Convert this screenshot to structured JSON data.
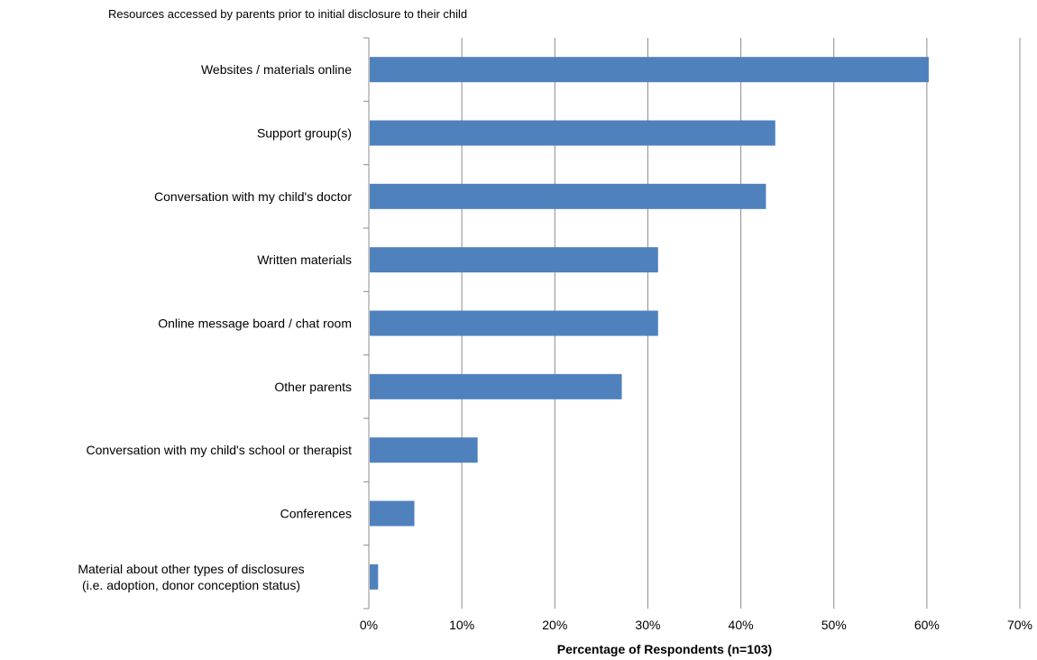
{
  "chart_data": {
    "type": "bar",
    "orientation": "horizontal",
    "title": "Resources accessed by parents prior to initial disclosure to their child",
    "xlabel": "Percentage of Respondents (n=103)",
    "ylabel": "",
    "xlim": [
      0,
      70
    ],
    "x_ticks": [
      "0%",
      "10%",
      "20%",
      "30%",
      "40%",
      "50%",
      "60%",
      "70%"
    ],
    "grid": "vertical",
    "legend": "none",
    "bar_color": "#4f81bd",
    "categories": [
      [
        "Websites / materials online"
      ],
      [
        "Support group(s)"
      ],
      [
        "Conversation with my child's doctor"
      ],
      [
        "Written materials"
      ],
      [
        "Online message board / chat room"
      ],
      [
        "Other parents"
      ],
      [
        "Conversation with my child's school or therapist"
      ],
      [
        "Conferences"
      ],
      [
        "Material about other types of disclosures",
        "(i.e. adoption, donor conception status)"
      ]
    ],
    "values": [
      60.2,
      43.7,
      42.7,
      31.1,
      31.1,
      27.2,
      11.7,
      4.9,
      1.0
    ]
  }
}
